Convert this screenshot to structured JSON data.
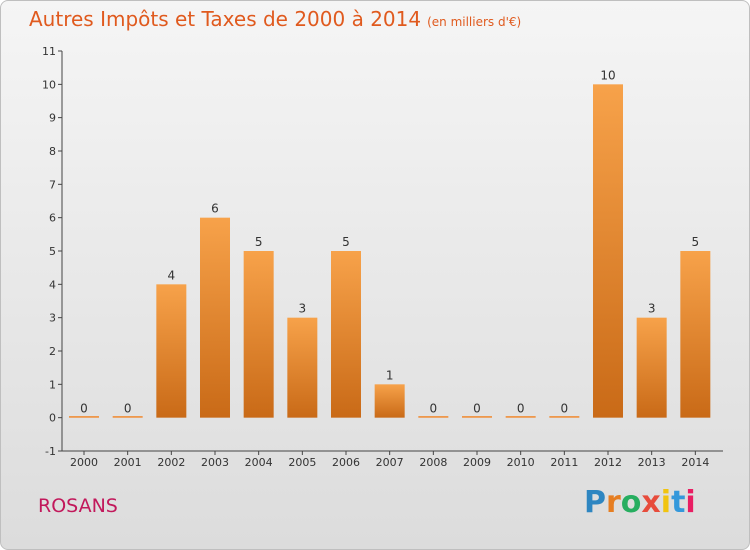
{
  "header": {
    "title": "Autres Impôts et Taxes de 2000 à 2014",
    "unit": "(en milliers d'€)"
  },
  "footer": {
    "city": "ROSANS",
    "logo": [
      "P",
      "r",
      "o",
      "x",
      "i",
      "t",
      "i"
    ],
    "logo_colors": [
      "#2e86c1",
      "#e67e22",
      "#27ae60",
      "#e74c3c",
      "#f1c40f",
      "#3498db",
      "#e91e63"
    ]
  },
  "chart_data": {
    "type": "bar",
    "title": "Autres Impôts et Taxes de 2000 à 2014",
    "subtitle": "(en milliers d'€)",
    "categories": [
      "2000",
      "2001",
      "2002",
      "2003",
      "2004",
      "2005",
      "2006",
      "2007",
      "2008",
      "2009",
      "2010",
      "2011",
      "2012",
      "2013",
      "2014"
    ],
    "values": [
      0,
      0,
      4,
      6,
      5,
      3,
      5,
      1,
      0,
      0,
      0,
      0,
      10,
      3,
      5
    ],
    "yticks": [
      "-1",
      "0",
      "1",
      "2",
      "3",
      "4",
      "5",
      "6",
      "7",
      "8",
      "9",
      "10",
      "11"
    ],
    "ylim": [
      -1,
      11
    ],
    "bar_color": "#f0892e",
    "grid": false
  }
}
